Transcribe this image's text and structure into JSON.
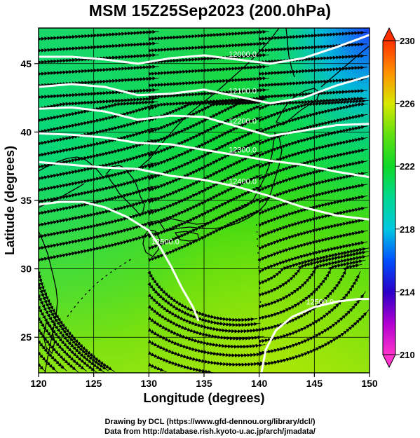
{
  "title": "MSM 15Z25Sep2023 (200.0hPa)",
  "chart_data": {
    "type": "heatmap",
    "title": "MSM 15Z25Sep2023 (200.0hPa)",
    "xlabel": "Longitude (degrees)",
    "ylabel": "Latitude  (degrees)",
    "xlim": [
      120,
      150
    ],
    "ylim": [
      22.4,
      47.6
    ],
    "x_ticks": [
      120,
      125,
      130,
      135,
      140,
      145,
      150
    ],
    "y_ticks": [
      25,
      30,
      35,
      40,
      45
    ],
    "colorbar": {
      "ticks": [
        210,
        214,
        218,
        222,
        226,
        230
      ],
      "range": [
        210,
        230
      ],
      "stops": [
        {
          "value": 210,
          "color": "#ff33cc"
        },
        {
          "value": 212,
          "color": "#b000d0"
        },
        {
          "value": 214,
          "color": "#2a00c8"
        },
        {
          "value": 216,
          "color": "#0050ff"
        },
        {
          "value": 218,
          "color": "#00c8e0"
        },
        {
          "value": 220,
          "color": "#00d890"
        },
        {
          "value": 222,
          "color": "#10d828"
        },
        {
          "value": 224,
          "color": "#60e010"
        },
        {
          "value": 226,
          "color": "#d8e800"
        },
        {
          "value": 228,
          "color": "#ff9000"
        },
        {
          "value": 230,
          "color": "#ff3000"
        }
      ]
    },
    "contours": [
      {
        "label": "12000.0",
        "points": [
          [
            120,
            45.5
          ],
          [
            123,
            45.5
          ],
          [
            126,
            45.3
          ],
          [
            129,
            45.0
          ],
          [
            132,
            45.4
          ],
          [
            135,
            45.6
          ],
          [
            138,
            45.3
          ],
          [
            141,
            45.0
          ],
          [
            144,
            45.4
          ],
          [
            147,
            46.2
          ],
          [
            150,
            47.1
          ]
        ]
      },
      {
        "label": "12100.0",
        "points": [
          [
            120,
            43.3
          ],
          [
            123,
            43.5
          ],
          [
            126,
            43.3
          ],
          [
            129,
            42.7
          ],
          [
            132,
            42.8
          ],
          [
            135,
            43.1
          ],
          [
            138,
            42.6
          ],
          [
            141,
            42.1
          ],
          [
            144,
            42.5
          ],
          [
            147,
            43.4
          ],
          [
            150,
            44.1
          ]
        ]
      },
      {
        "label": "12200.0",
        "points": [
          [
            120,
            41.7
          ],
          [
            123,
            41.8
          ],
          [
            126,
            41.5
          ],
          [
            129,
            40.9
          ],
          [
            132,
            41.2
          ],
          [
            135,
            41.1
          ],
          [
            138,
            40.4
          ],
          [
            141,
            39.7
          ],
          [
            144,
            40.1
          ],
          [
            147,
            40.5
          ],
          [
            150,
            40.6
          ]
        ]
      },
      {
        "label": "12300.0",
        "points": [
          [
            120,
            39.9
          ],
          [
            123,
            39.8
          ],
          [
            126,
            39.6
          ],
          [
            129,
            39.2
          ],
          [
            132,
            39.1
          ],
          [
            135,
            38.7
          ],
          [
            138,
            38.3
          ],
          [
            141,
            37.9
          ],
          [
            144,
            37.6
          ],
          [
            147,
            37.1
          ],
          [
            150,
            36.7
          ]
        ]
      },
      {
        "label": "12400.0",
        "points": [
          [
            120,
            37.8
          ],
          [
            123,
            37.6
          ],
          [
            126,
            37.4
          ],
          [
            129,
            37.3
          ],
          [
            132,
            36.8
          ],
          [
            135,
            36.5
          ],
          [
            138,
            36.0
          ],
          [
            141,
            35.3
          ],
          [
            144,
            34.5
          ],
          [
            147,
            33.9
          ],
          [
            150,
            33.6
          ]
        ]
      },
      {
        "label": "12500.0",
        "points": [
          [
            120,
            34.7
          ],
          [
            122,
            34.9
          ],
          [
            124,
            34.9
          ],
          [
            126,
            34.5
          ],
          [
            128,
            33.8
          ],
          [
            130,
            32.8
          ],
          [
            131,
            31.6
          ],
          [
            132,
            30.2
          ],
          [
            133,
            28.6
          ],
          [
            134,
            27.2
          ],
          [
            134.5,
            26.2
          ]
        ]
      },
      {
        "label": "12500.0",
        "points": [
          [
            140.2,
            22.4
          ],
          [
            140.6,
            24.1
          ],
          [
            141.5,
            25.5
          ],
          [
            143,
            26.5
          ],
          [
            145,
            27.2
          ],
          [
            147,
            27.6
          ],
          [
            149,
            27.8
          ],
          [
            150,
            27.8
          ]
        ]
      }
    ],
    "wind_field": "streamlines flowing west-to-east, curving northeast over Japan; anticyclonic flow in the south"
  },
  "credits": {
    "line1": "Drawing by DCL (https://www.gfd-dennou.org/library/dcl/)",
    "line2": "Data from http://database.rish.kyoto-u.ac.jp/arch/jmadata/"
  }
}
